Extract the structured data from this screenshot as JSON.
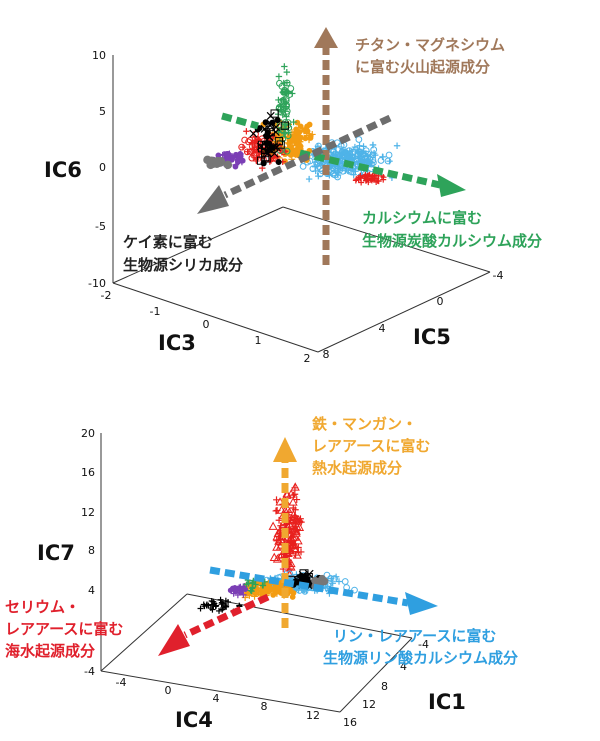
{
  "chart_data": [
    {
      "type": "scatter",
      "subtype": "3d-scatter",
      "title": "",
      "axes": {
        "x": {
          "label": "IC3",
          "range": [
            -2,
            2
          ],
          "ticks": [
            "-2",
            "-1",
            "0",
            "1",
            "2"
          ]
        },
        "y": {
          "label": "IC5",
          "range": [
            -4,
            8
          ],
          "ticks": [
            "8",
            "4",
            "0",
            "-4"
          ]
        },
        "z": {
          "label": "IC6",
          "range": [
            -10,
            10
          ],
          "ticks": [
            "10",
            "5",
            "0",
            "-5",
            "-10"
          ]
        }
      },
      "components": [
        {
          "label_lines": [
            "チタン・マグネシウム",
            "に富む火山起源成分"
          ],
          "color": "#a0785a",
          "direction": "up"
        },
        {
          "label_lines": [
            "カルシウムに富む",
            "生物源炭酸カルシウム成分"
          ],
          "color": "#2ea35a",
          "direction": "right-down"
        },
        {
          "label_lines": [
            "ケイ素に富む",
            "生物源シリカ成分"
          ],
          "color": "#6d6d6d",
          "direction": "left-down"
        }
      ],
      "point_colors": [
        "#4fb3e8",
        "#e8211e",
        "#f39c12",
        "#7b3fb5",
        "#2ea35a",
        "#000000",
        "#777777"
      ],
      "grid": false
    },
    {
      "type": "scatter",
      "subtype": "3d-scatter",
      "title": "",
      "axes": {
        "x": {
          "label": "IC4",
          "range": [
            -4,
            12
          ],
          "ticks": [
            "-4",
            "0",
            "4",
            "8",
            "12"
          ]
        },
        "y": {
          "label": "IC1",
          "range": [
            -4,
            16
          ],
          "ticks": [
            "-4",
            "4",
            "8",
            "12",
            "16"
          ]
        },
        "z": {
          "label": "IC7",
          "range": [
            -4,
            20
          ],
          "ticks": [
            "20",
            "16",
            "12",
            "8",
            "4",
            "-4"
          ]
        }
      },
      "components": [
        {
          "label_lines": [
            "鉄・マンガン・",
            "レアアースに富む",
            "熱水起源成分"
          ],
          "color": "#f0a830",
          "direction": "up"
        },
        {
          "label_lines": [
            "リン・レアアースに富む",
            "生物源リン酸カルシウム成分"
          ],
          "color": "#2f9fe0",
          "direction": "right-down"
        },
        {
          "label_lines": [
            "セリウム・",
            "レアアースに富む",
            "海水起源成分"
          ],
          "color": "#e0202c",
          "direction": "left-down"
        }
      ],
      "point_colors": [
        "#e8211e",
        "#4fb3e8",
        "#f39c12",
        "#000000",
        "#7b3fb5",
        "#2ea35a",
        "#777777"
      ],
      "grid": false
    }
  ]
}
